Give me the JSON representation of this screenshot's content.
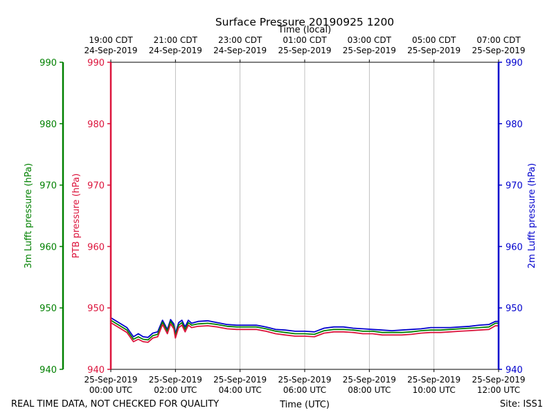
{
  "chart_data": {
    "type": "line",
    "title": "Surface Pressure 20190925 1200",
    "xlabel_bottom": "Time (UTC)",
    "xlabel_top": "Time (local)",
    "footer_left": "REAL TIME DATA, NOT CHECKED FOR QUALITY",
    "footer_right": "Site: ISS1",
    "xlim_hours": [
      0,
      12
    ],
    "ylim": [
      940,
      990
    ],
    "yticks": [
      940,
      950,
      960,
      970,
      980,
      990
    ],
    "axes": [
      {
        "id": "luft3m",
        "label": "3m Lufft pressure (hPa)",
        "color": "#008000"
      },
      {
        "id": "ptb",
        "label": "PTB pressure (hPa)",
        "color": "#dc143c"
      },
      {
        "id": "luft2m",
        "label": "2m Lufft pressure (hPa)",
        "color": "#0000cd"
      }
    ],
    "bottom_ticks": [
      {
        "hour": 0,
        "line1": "25-Sep-2019",
        "line2": "00:00 UTC"
      },
      {
        "hour": 2,
        "line1": "25-Sep-2019",
        "line2": "02:00 UTC"
      },
      {
        "hour": 4,
        "line1": "25-Sep-2019",
        "line2": "04:00 UTC"
      },
      {
        "hour": 6,
        "line1": "25-Sep-2019",
        "line2": "06:00 UTC"
      },
      {
        "hour": 8,
        "line1": "25-Sep-2019",
        "line2": "08:00 UTC"
      },
      {
        "hour": 10,
        "line1": "25-Sep-2019",
        "line2": "10:00 UTC"
      },
      {
        "hour": 12,
        "line1": "25-Sep-2019",
        "line2": "12:00 UTC"
      }
    ],
    "top_ticks": [
      {
        "hour": 0,
        "line1": "19:00 CDT",
        "line2": "24-Sep-2019"
      },
      {
        "hour": 2,
        "line1": "21:00 CDT",
        "line2": "24-Sep-2019"
      },
      {
        "hour": 4,
        "line1": "23:00 CDT",
        "line2": "24-Sep-2019"
      },
      {
        "hour": 6,
        "line1": "01:00 CDT",
        "line2": "25-Sep-2019"
      },
      {
        "hour": 8,
        "line1": "03:00 CDT",
        "line2": "25-Sep-2019"
      },
      {
        "hour": 10,
        "line1": "05:00 CDT",
        "line2": "25-Sep-2019"
      },
      {
        "hour": 12,
        "line1": "07:00 CDT",
        "line2": "25-Sep-2019"
      }
    ],
    "x": [
      0.0,
      0.25,
      0.5,
      0.7,
      0.85,
      1.0,
      1.15,
      1.3,
      1.45,
      1.6,
      1.75,
      1.85,
      1.95,
      2.0,
      2.1,
      2.2,
      2.3,
      2.4,
      2.5,
      2.7,
      3.0,
      3.3,
      3.6,
      3.9,
      4.2,
      4.5,
      4.8,
      5.1,
      5.4,
      5.7,
      6.0,
      6.3,
      6.6,
      6.9,
      7.2,
      7.5,
      7.8,
      8.1,
      8.4,
      8.7,
      9.0,
      9.3,
      9.6,
      9.9,
      10.2,
      10.5,
      10.8,
      11.1,
      11.4,
      11.7,
      11.9,
      12.0
    ],
    "series": [
      {
        "name": "2m Lufft pressure",
        "color": "#0000cd",
        "values": [
          948.4,
          947.6,
          946.8,
          945.3,
          945.8,
          945.3,
          945.2,
          945.9,
          946.1,
          948.0,
          946.5,
          948.1,
          947.4,
          945.8,
          947.6,
          948.0,
          946.9,
          948.0,
          947.5,
          947.8,
          947.9,
          947.6,
          947.3,
          947.2,
          947.2,
          947.2,
          946.9,
          946.5,
          946.4,
          946.2,
          946.2,
          946.1,
          946.7,
          946.9,
          946.9,
          946.7,
          946.6,
          946.5,
          946.4,
          946.3,
          946.4,
          946.5,
          946.6,
          946.8,
          946.8,
          946.8,
          946.9,
          947.0,
          947.2,
          947.3,
          947.8,
          947.8
        ]
      },
      {
        "name": "3m Lufft pressure",
        "color": "#008000",
        "values": [
          948.0,
          947.2,
          946.4,
          944.9,
          945.3,
          944.9,
          944.8,
          945.5,
          945.7,
          947.7,
          946.2,
          947.8,
          947.0,
          945.5,
          947.2,
          947.6,
          946.5,
          947.6,
          947.2,
          947.4,
          947.5,
          947.3,
          947.0,
          946.9,
          946.9,
          946.9,
          946.6,
          946.2,
          946.0,
          945.8,
          945.8,
          945.7,
          946.3,
          946.5,
          946.5,
          946.4,
          946.2,
          946.2,
          946.0,
          946.0,
          946.0,
          946.1,
          946.3,
          946.4,
          946.4,
          946.5,
          946.6,
          946.7,
          946.8,
          946.9,
          947.5,
          947.5
        ]
      },
      {
        "name": "PTB pressure",
        "color": "#dc143c",
        "values": [
          947.6,
          946.8,
          946.0,
          944.5,
          944.9,
          944.5,
          944.4,
          945.1,
          945.3,
          947.3,
          945.8,
          947.4,
          946.6,
          945.1,
          946.8,
          947.2,
          946.1,
          947.2,
          946.8,
          947.0,
          947.1,
          946.9,
          946.6,
          946.5,
          946.5,
          946.5,
          946.2,
          945.8,
          945.6,
          945.4,
          945.4,
          945.3,
          945.9,
          946.1,
          946.1,
          946.0,
          945.8,
          945.8,
          945.6,
          945.6,
          945.6,
          945.7,
          945.9,
          946.0,
          946.0,
          946.1,
          946.2,
          946.3,
          946.4,
          946.5,
          947.1,
          947.1
        ]
      }
    ]
  }
}
